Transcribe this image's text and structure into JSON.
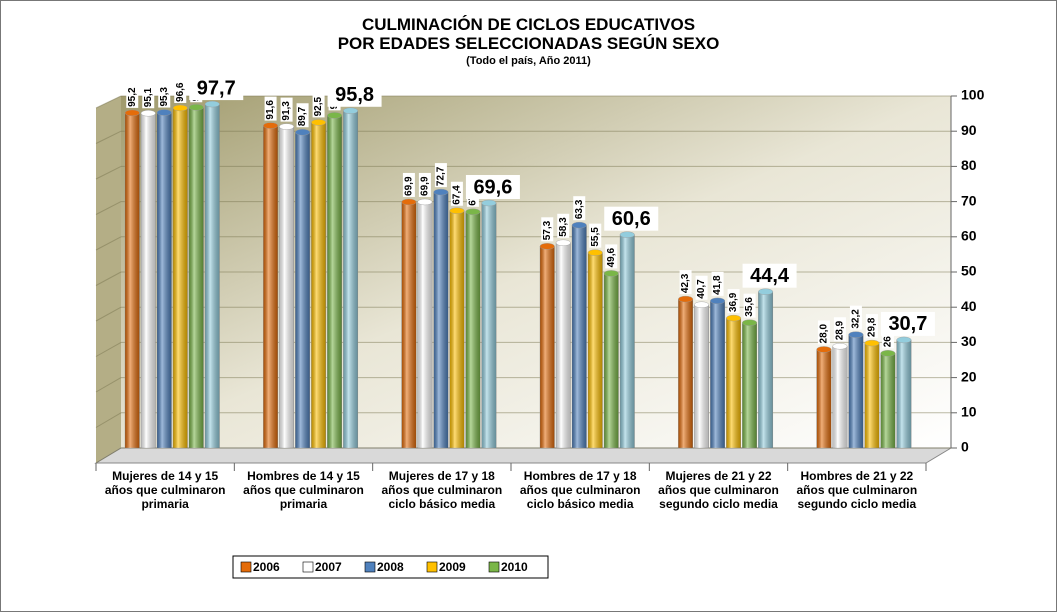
{
  "chart_data": {
    "type": "bar",
    "title": [
      "CULMINACIÓN DE CICLOS EDUCATIVOS",
      "POR EDADES SELECCIONADAS SEGÚN SEXO"
    ],
    "subtitle": "(Todo el país, Año 2011)",
    "categories": [
      "Mujeres de 14 y 15 años que culminaron primaria",
      "Hombres de 14 y 15 años que culminaron primaria",
      "Mujeres de 17 y 18 años que culminaron ciclo básico media",
      "Hombres de 17 y 18 años que culminaron ciclo básico media",
      "Mujeres de 21 y 22 años que culminaron segundo ciclo media",
      "Hombres de 21 y 22 años que culminaron segundo ciclo media"
    ],
    "series": [
      {
        "name": "2006",
        "color": "#e46c0a",
        "values": [
          95.2,
          91.6,
          69.9,
          57.3,
          42.3,
          28.0
        ],
        "value_labels": [
          "95,2",
          "91,6",
          "69,9",
          "57,3",
          "42,3",
          "28,0"
        ]
      },
      {
        "name": "2007",
        "color": "#ffffff",
        "values": [
          95.1,
          91.3,
          69.9,
          58.3,
          40.7,
          28.9
        ],
        "value_labels": [
          "95,1",
          "91,3",
          "69,9",
          "58,3",
          "40,7",
          "28,9"
        ]
      },
      {
        "name": "2008",
        "color": "#4f81bd",
        "values": [
          95.3,
          89.7,
          72.7,
          63.3,
          41.8,
          32.2
        ],
        "value_labels": [
          "95,3",
          "89,7",
          "72,7",
          "63,3",
          "41,8",
          "32,2"
        ]
      },
      {
        "name": "2009",
        "color": "#ffc000",
        "values": [
          96.6,
          92.5,
          67.4,
          55.5,
          36.9,
          29.8
        ],
        "value_labels": [
          "96,6",
          "92,5",
          "67,4",
          "55,5",
          "36,9",
          "29,8"
        ]
      },
      {
        "name": "2010",
        "color": "#7ab648",
        "values": [
          96.8,
          94.5,
          67.1,
          49.6,
          35.6,
          26.9
        ],
        "value_labels": [
          "96,8",
          "94,5",
          "67,1",
          "49,6",
          "35,6",
          "26,9"
        ]
      },
      {
        "color": "#93cddd",
        "values": [
          97.7,
          95.8,
          69.6,
          60.6,
          44.4,
          30.7
        ],
        "value_labels": [
          "97,7",
          "95,8",
          "69,6",
          "60,6",
          "44,4",
          "30,7"
        ]
      }
    ],
    "ylim": [
      0,
      100
    ],
    "yticks": [
      0,
      10,
      20,
      30,
      40,
      50,
      60,
      70,
      80,
      90,
      100
    ],
    "axis_side": "right",
    "grid": true
  }
}
